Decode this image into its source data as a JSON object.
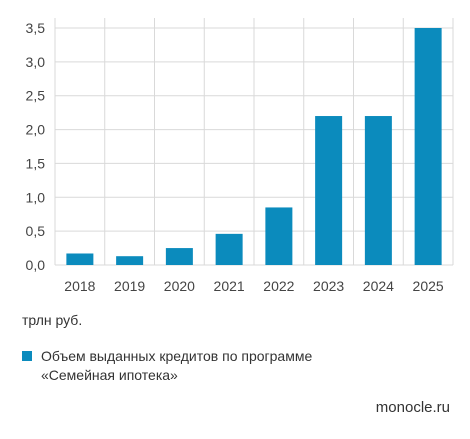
{
  "chart_data": {
    "type": "bar",
    "categories": [
      "2018",
      "2019",
      "2020",
      "2021",
      "2022",
      "2023",
      "2024",
      "2025"
    ],
    "series": [
      {
        "name": "Объем выданных кредитов по программе «Семейная ипотека»",
        "values": [
          0.17,
          0.13,
          0.25,
          0.46,
          0.85,
          2.2,
          2.2,
          3.5
        ]
      }
    ],
    "y_ticks": [
      "0,0",
      "0,5",
      "1,0",
      "1,5",
      "2,0",
      "2,5",
      "3,0",
      "3,5"
    ],
    "ylim": [
      0,
      3.5
    ],
    "grid": true,
    "legend_position": "bottom-left",
    "unit_label": "трлн руб.",
    "legend": {
      "line1": "Объем выданных кредитов по программе",
      "line2": "«Семейная ипотека»"
    },
    "bar_color": "#0b8bbd",
    "grid_color": "#d9d9d9"
  },
  "source": "monocle.ru"
}
